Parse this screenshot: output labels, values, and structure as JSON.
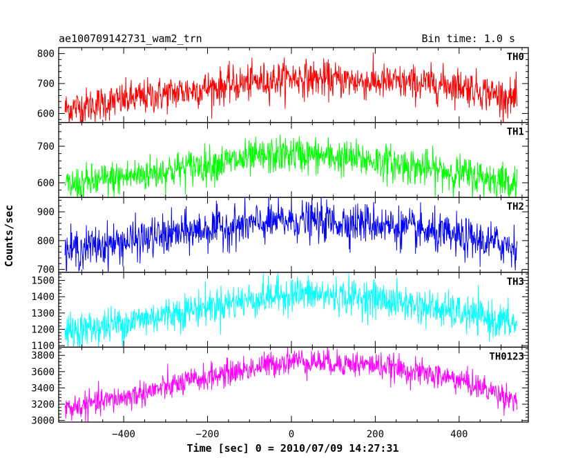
{
  "header": {
    "title": "ae100709142731_wam2_trn",
    "bin_time": "Bin time: 1.0 s"
  },
  "chart_data": {
    "type": "line",
    "xlabel": "Time [sec] 0 = 2010/07/09 14:27:31",
    "ylabel": "Counts/sec",
    "xlim": [
      -555,
      565
    ],
    "xticks": [
      -400,
      -200,
      0,
      200,
      400
    ],
    "x_start": -540,
    "x_end": 538,
    "bin_time": 1.0,
    "panels": [
      {
        "name": "TH0",
        "color": "#ff0000",
        "ylim": [
          570,
          820
        ],
        "yticks": [
          600,
          700,
          800
        ],
        "trend": {
          "x": [
            -540,
            -400,
            -200,
            0,
            200,
            400,
            538
          ],
          "y": [
            615,
            645,
            685,
            720,
            705,
            695,
            645
          ]
        },
        "noise": 30
      },
      {
        "name": "TH1",
        "color": "#00ff00",
        "ylim": [
          560,
          765
        ],
        "yticks": [
          600,
          700
        ],
        "trend": {
          "x": [
            -540,
            -400,
            -200,
            0,
            200,
            400,
            538
          ],
          "y": [
            590,
            615,
            650,
            680,
            660,
            625,
            600
          ]
        },
        "noise": 25
      },
      {
        "name": "TH2",
        "color": "#0000ff",
        "ylim": [
          690,
          950
        ],
        "yticks": [
          700,
          800,
          900
        ],
        "trend": {
          "x": [
            -540,
            -400,
            -200,
            0,
            200,
            400,
            538
          ],
          "y": [
            765,
            795,
            840,
            870,
            860,
            810,
            780
          ]
        },
        "noise": 35
      },
      {
        "name": "TH3",
        "color": "#00ffff",
        "ylim": [
          1090,
          1550
        ],
        "yticks": [
          1100,
          1200,
          1300,
          1400,
          1500
        ],
        "trend": {
          "x": [
            -540,
            -400,
            -200,
            0,
            200,
            400,
            538
          ],
          "y": [
            1180,
            1240,
            1340,
            1420,
            1390,
            1300,
            1230
          ]
        },
        "noise": 55
      },
      {
        "name": "TH0123",
        "color": "#ff00ff",
        "ylim": [
          2980,
          3900
        ],
        "yticks": [
          3000,
          3200,
          3400,
          3600,
          3800
        ],
        "trend": {
          "x": [
            -540,
            -400,
            -200,
            0,
            200,
            400,
            538
          ],
          "y": [
            3140,
            3280,
            3530,
            3740,
            3680,
            3500,
            3250
          ]
        },
        "noise": 80
      }
    ]
  }
}
